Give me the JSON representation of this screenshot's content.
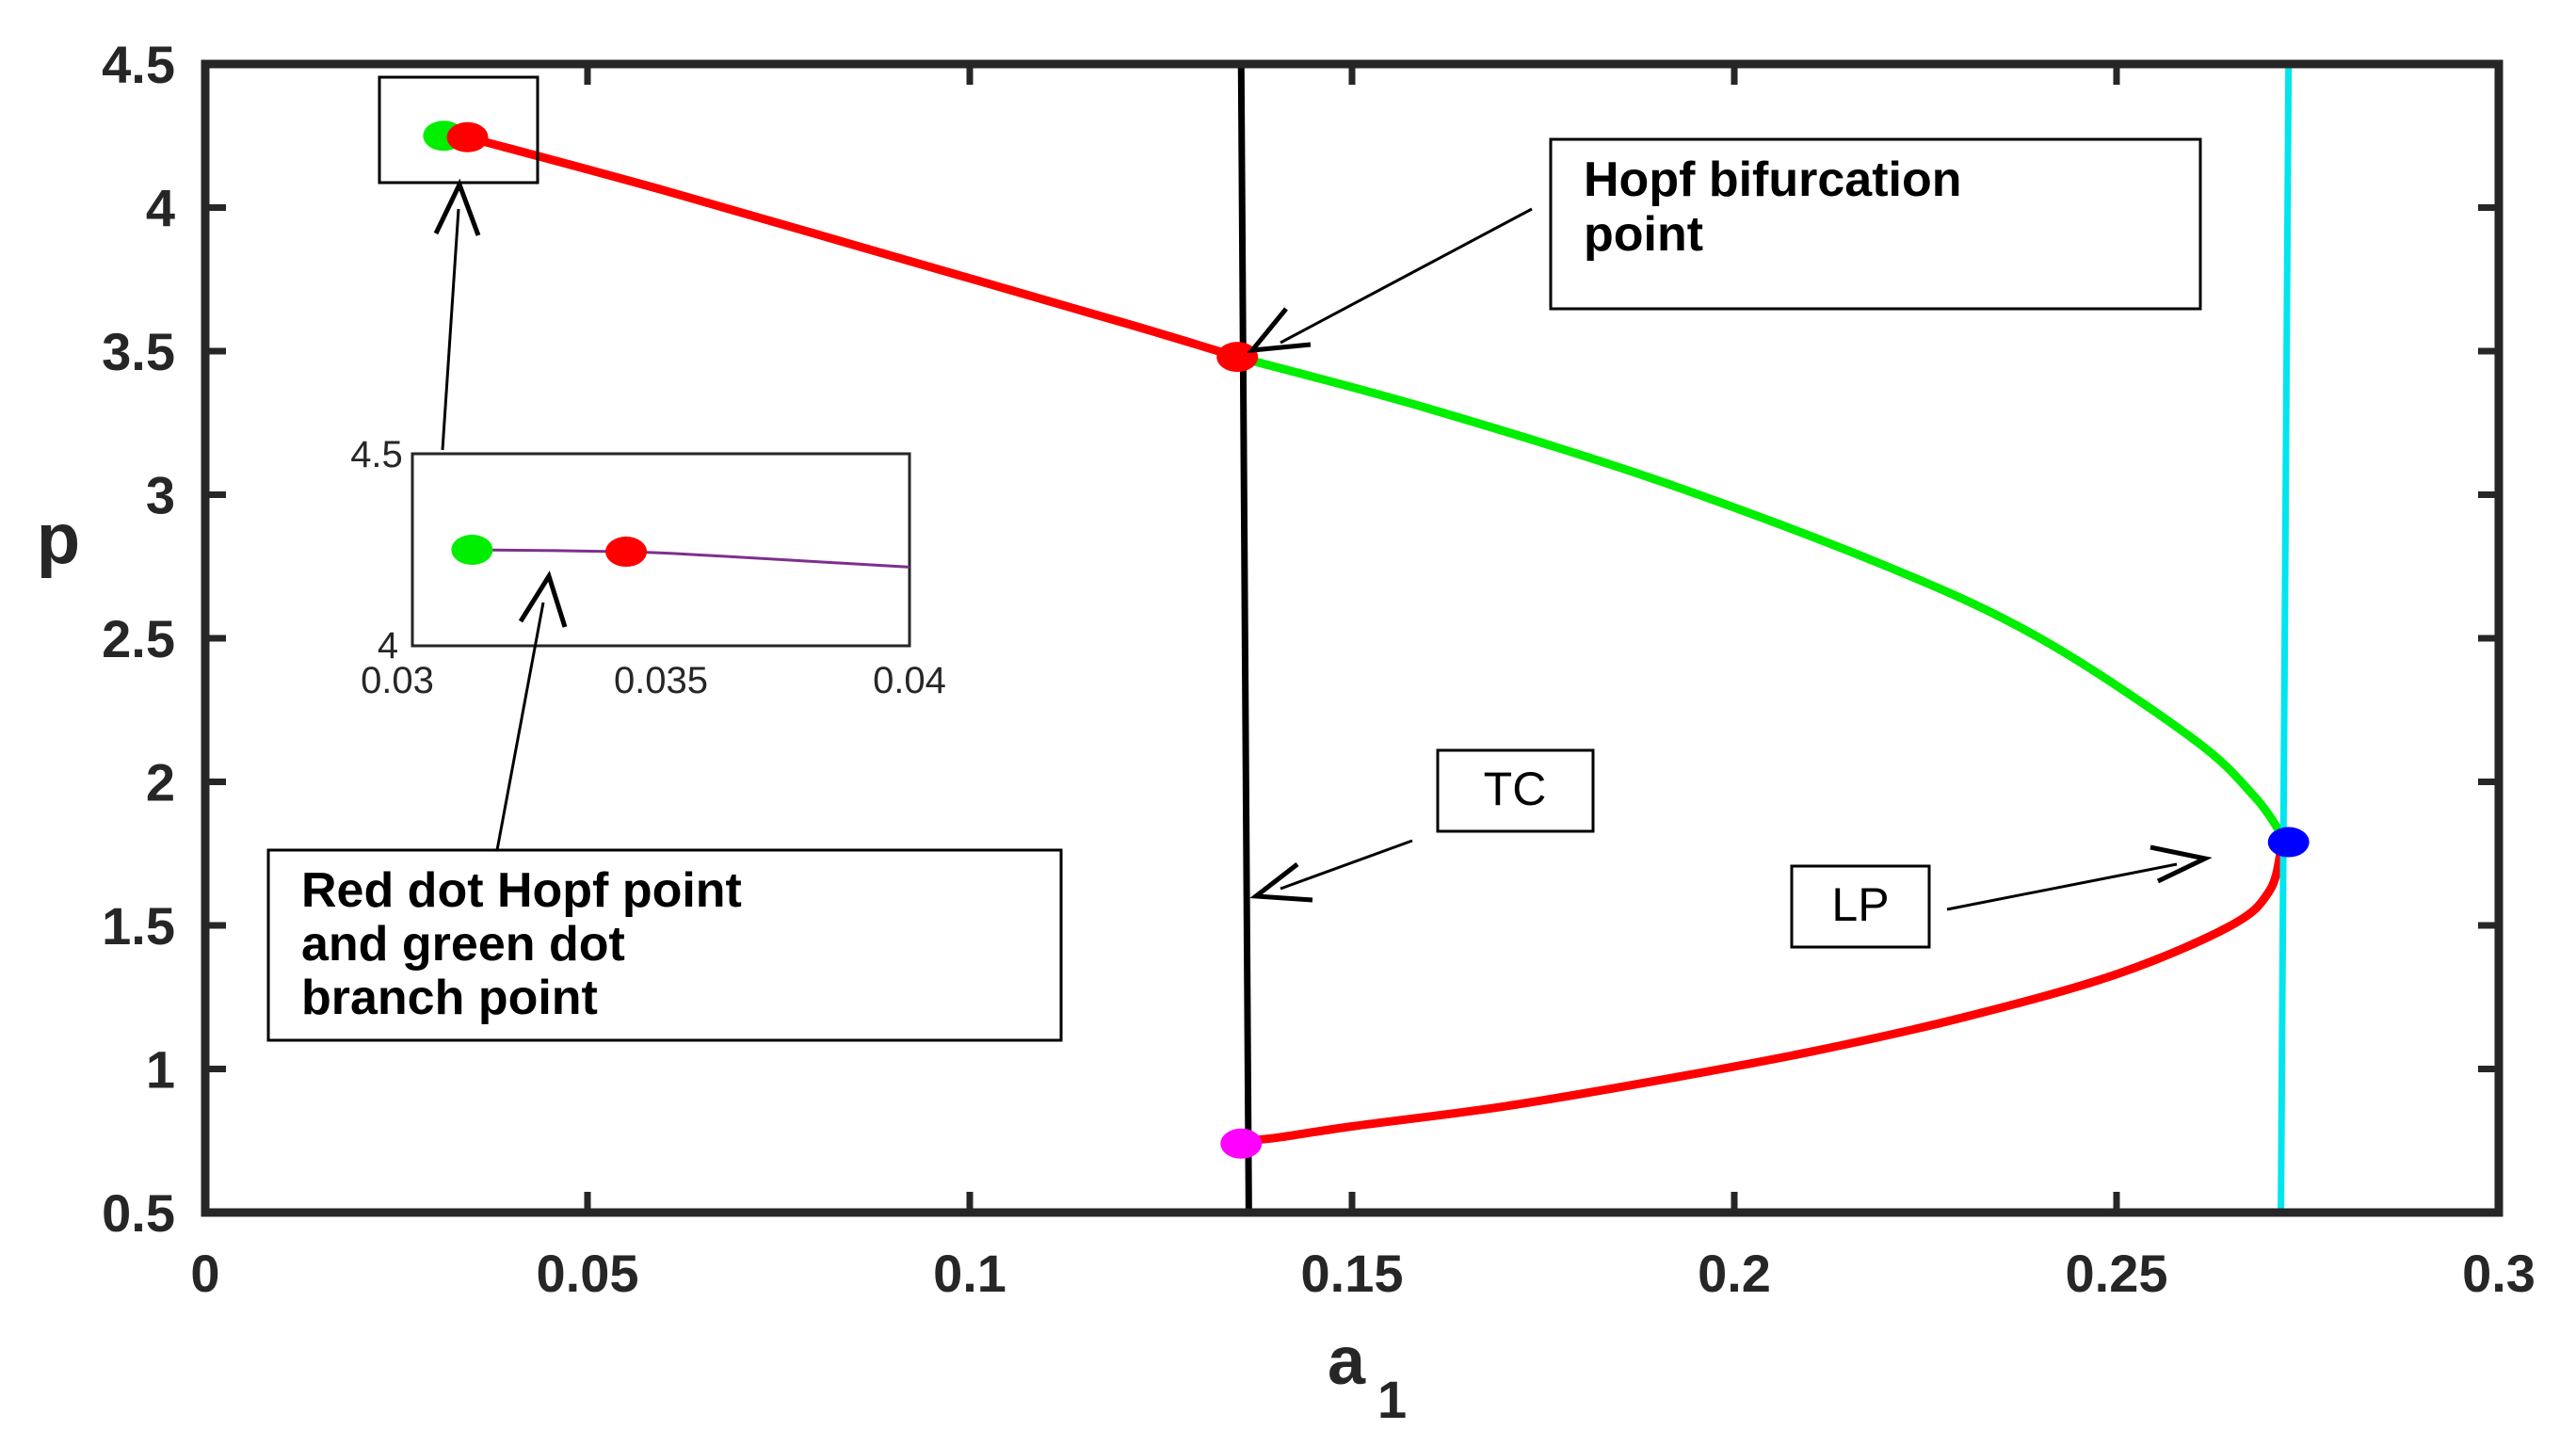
{
  "chart_data": {
    "type": "line",
    "title": "",
    "xlabel": "a",
    "xlabel_subscript": "1",
    "ylabel": "p",
    "xlim": [
      0,
      0.3
    ],
    "ylim": [
      0.5,
      4.5
    ],
    "x_ticks": [
      "0",
      "0.05",
      "0.1",
      "0.15",
      "0.2",
      "0.25",
      "0.3"
    ],
    "y_ticks": [
      "0.5",
      "1",
      "1.5",
      "2",
      "2.5",
      "3",
      "3.5",
      "4",
      "4.5"
    ],
    "grid": false,
    "legend": "none",
    "series": [
      {
        "color": "#ff0000",
        "x": [
          0.0343,
          0.06,
          0.09,
          0.12,
          0.135
        ],
        "y": [
          4.245,
          4.06,
          3.83,
          3.6,
          3.48
        ]
      },
      {
        "color": "#00ee00",
        "x": [
          0.135,
          0.16,
          0.19,
          0.22,
          0.24,
          0.26,
          0.268,
          0.2715
        ],
        "y": [
          3.48,
          3.3,
          3.05,
          2.75,
          2.5,
          2.15,
          1.95,
          1.82
        ]
      },
      {
        "color": "#ff0000",
        "x": [
          0.2715,
          0.27,
          0.265,
          0.25,
          0.23,
          0.21,
          0.19,
          0.17,
          0.15,
          0.14,
          0.1355
        ],
        "y": [
          1.76,
          1.62,
          1.5,
          1.33,
          1.18,
          1.06,
          0.96,
          0.87,
          0.8,
          0.76,
          0.75
        ]
      }
    ],
    "vertical_lines": [
      {
        "label": "TC",
        "color": "#000000",
        "x": [
          0.1355,
          0.1365
        ],
        "y": [
          4.5,
          0.5
        ]
      },
      {
        "label": "",
        "color": "#00e5ee",
        "x": [
          0.2725,
          0.2715
        ],
        "y": [
          4.5,
          0.5
        ]
      }
    ],
    "points": [
      {
        "x": 0.0312,
        "y": 4.25,
        "color": "#00ee00"
      },
      {
        "x": 0.0343,
        "y": 4.245,
        "color": "#ff0000"
      },
      {
        "x": 0.135,
        "y": 3.48,
        "color": "#ff0000"
      },
      {
        "x": 0.2725,
        "y": 1.79,
        "color": "#0000ff"
      },
      {
        "x": 0.1355,
        "y": 0.74,
        "color": "#ff00ff"
      }
    ],
    "inset": {
      "xlim": [
        0.03,
        0.04
      ],
      "ylim": [
        4,
        4.5
      ],
      "x_ticks": [
        "0.03",
        "0.035",
        "0.04"
      ],
      "y_ticks": [
        "4",
        "4.5"
      ],
      "curve": {
        "color": "#7e2f8e",
        "x": [
          0.0312,
          0.0343,
          0.036,
          0.038,
          0.04
        ],
        "y": [
          4.25,
          4.245,
          4.235,
          4.22,
          4.205
        ]
      },
      "points": [
        {
          "x": 0.0312,
          "y": 4.25,
          "color": "#00ee00"
        },
        {
          "x": 0.0343,
          "y": 4.245,
          "color": "#ff0000"
        }
      ]
    },
    "annotations": {
      "hopf": [
        "Hopf bifurcation",
        "point"
      ],
      "tc": "TC",
      "lp": "LP",
      "note": [
        "Red dot Hopf point",
        "and green dot",
        "branch point"
      ]
    }
  }
}
